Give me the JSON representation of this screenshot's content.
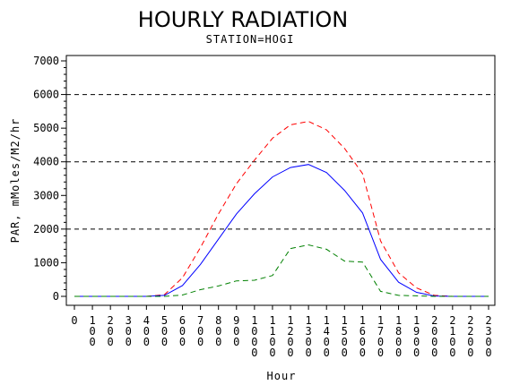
{
  "chart_data": {
    "type": "line",
    "title": "HOURLY RADIATION",
    "subtitle": "STATION=HOGI",
    "xlabel": "Hour",
    "ylabel": "PAR, mMoles/M2/hr",
    "xlim": [
      0,
      2300
    ],
    "ylim": [
      0,
      7000
    ],
    "x_ticks": [
      0,
      100,
      200,
      300,
      400,
      500,
      600,
      700,
      800,
      900,
      1000,
      1100,
      1200,
      1300,
      1400,
      1500,
      1600,
      1700,
      1800,
      1900,
      2000,
      2100,
      2200,
      2300
    ],
    "y_ticks": [
      0,
      1000,
      2000,
      3000,
      4000,
      5000,
      6000,
      7000
    ],
    "reference_lines": [
      2000,
      4000,
      6000
    ],
    "grid": false,
    "legend": "none",
    "x": [
      0,
      100,
      200,
      300,
      400,
      500,
      600,
      700,
      800,
      900,
      1000,
      1100,
      1200,
      1300,
      1400,
      1500,
      1600,
      1700,
      1800,
      1900,
      2000,
      2100,
      2200,
      2300
    ],
    "series": [
      {
        "color": "#ff0000",
        "dash": "dashed",
        "values": [
          0,
          0,
          0,
          0,
          0,
          50,
          550,
          1450,
          2450,
          3350,
          4050,
          4700,
          5100,
          5200,
          4950,
          4400,
          3650,
          1650,
          700,
          250,
          30,
          0,
          0,
          0
        ]
      },
      {
        "color": "#0000ff",
        "dash": "solid",
        "values": [
          0,
          0,
          0,
          0,
          0,
          30,
          320,
          950,
          1700,
          2450,
          3050,
          3550,
          3830,
          3920,
          3680,
          3150,
          2480,
          1100,
          420,
          120,
          10,
          0,
          0,
          0
        ]
      },
      {
        "color": "#008000",
        "dash": "dashed",
        "values": [
          0,
          0,
          0,
          0,
          0,
          0,
          40,
          200,
          310,
          460,
          480,
          620,
          1420,
          1530,
          1400,
          1050,
          1020,
          150,
          30,
          15,
          0,
          0,
          0,
          0
        ]
      }
    ]
  }
}
